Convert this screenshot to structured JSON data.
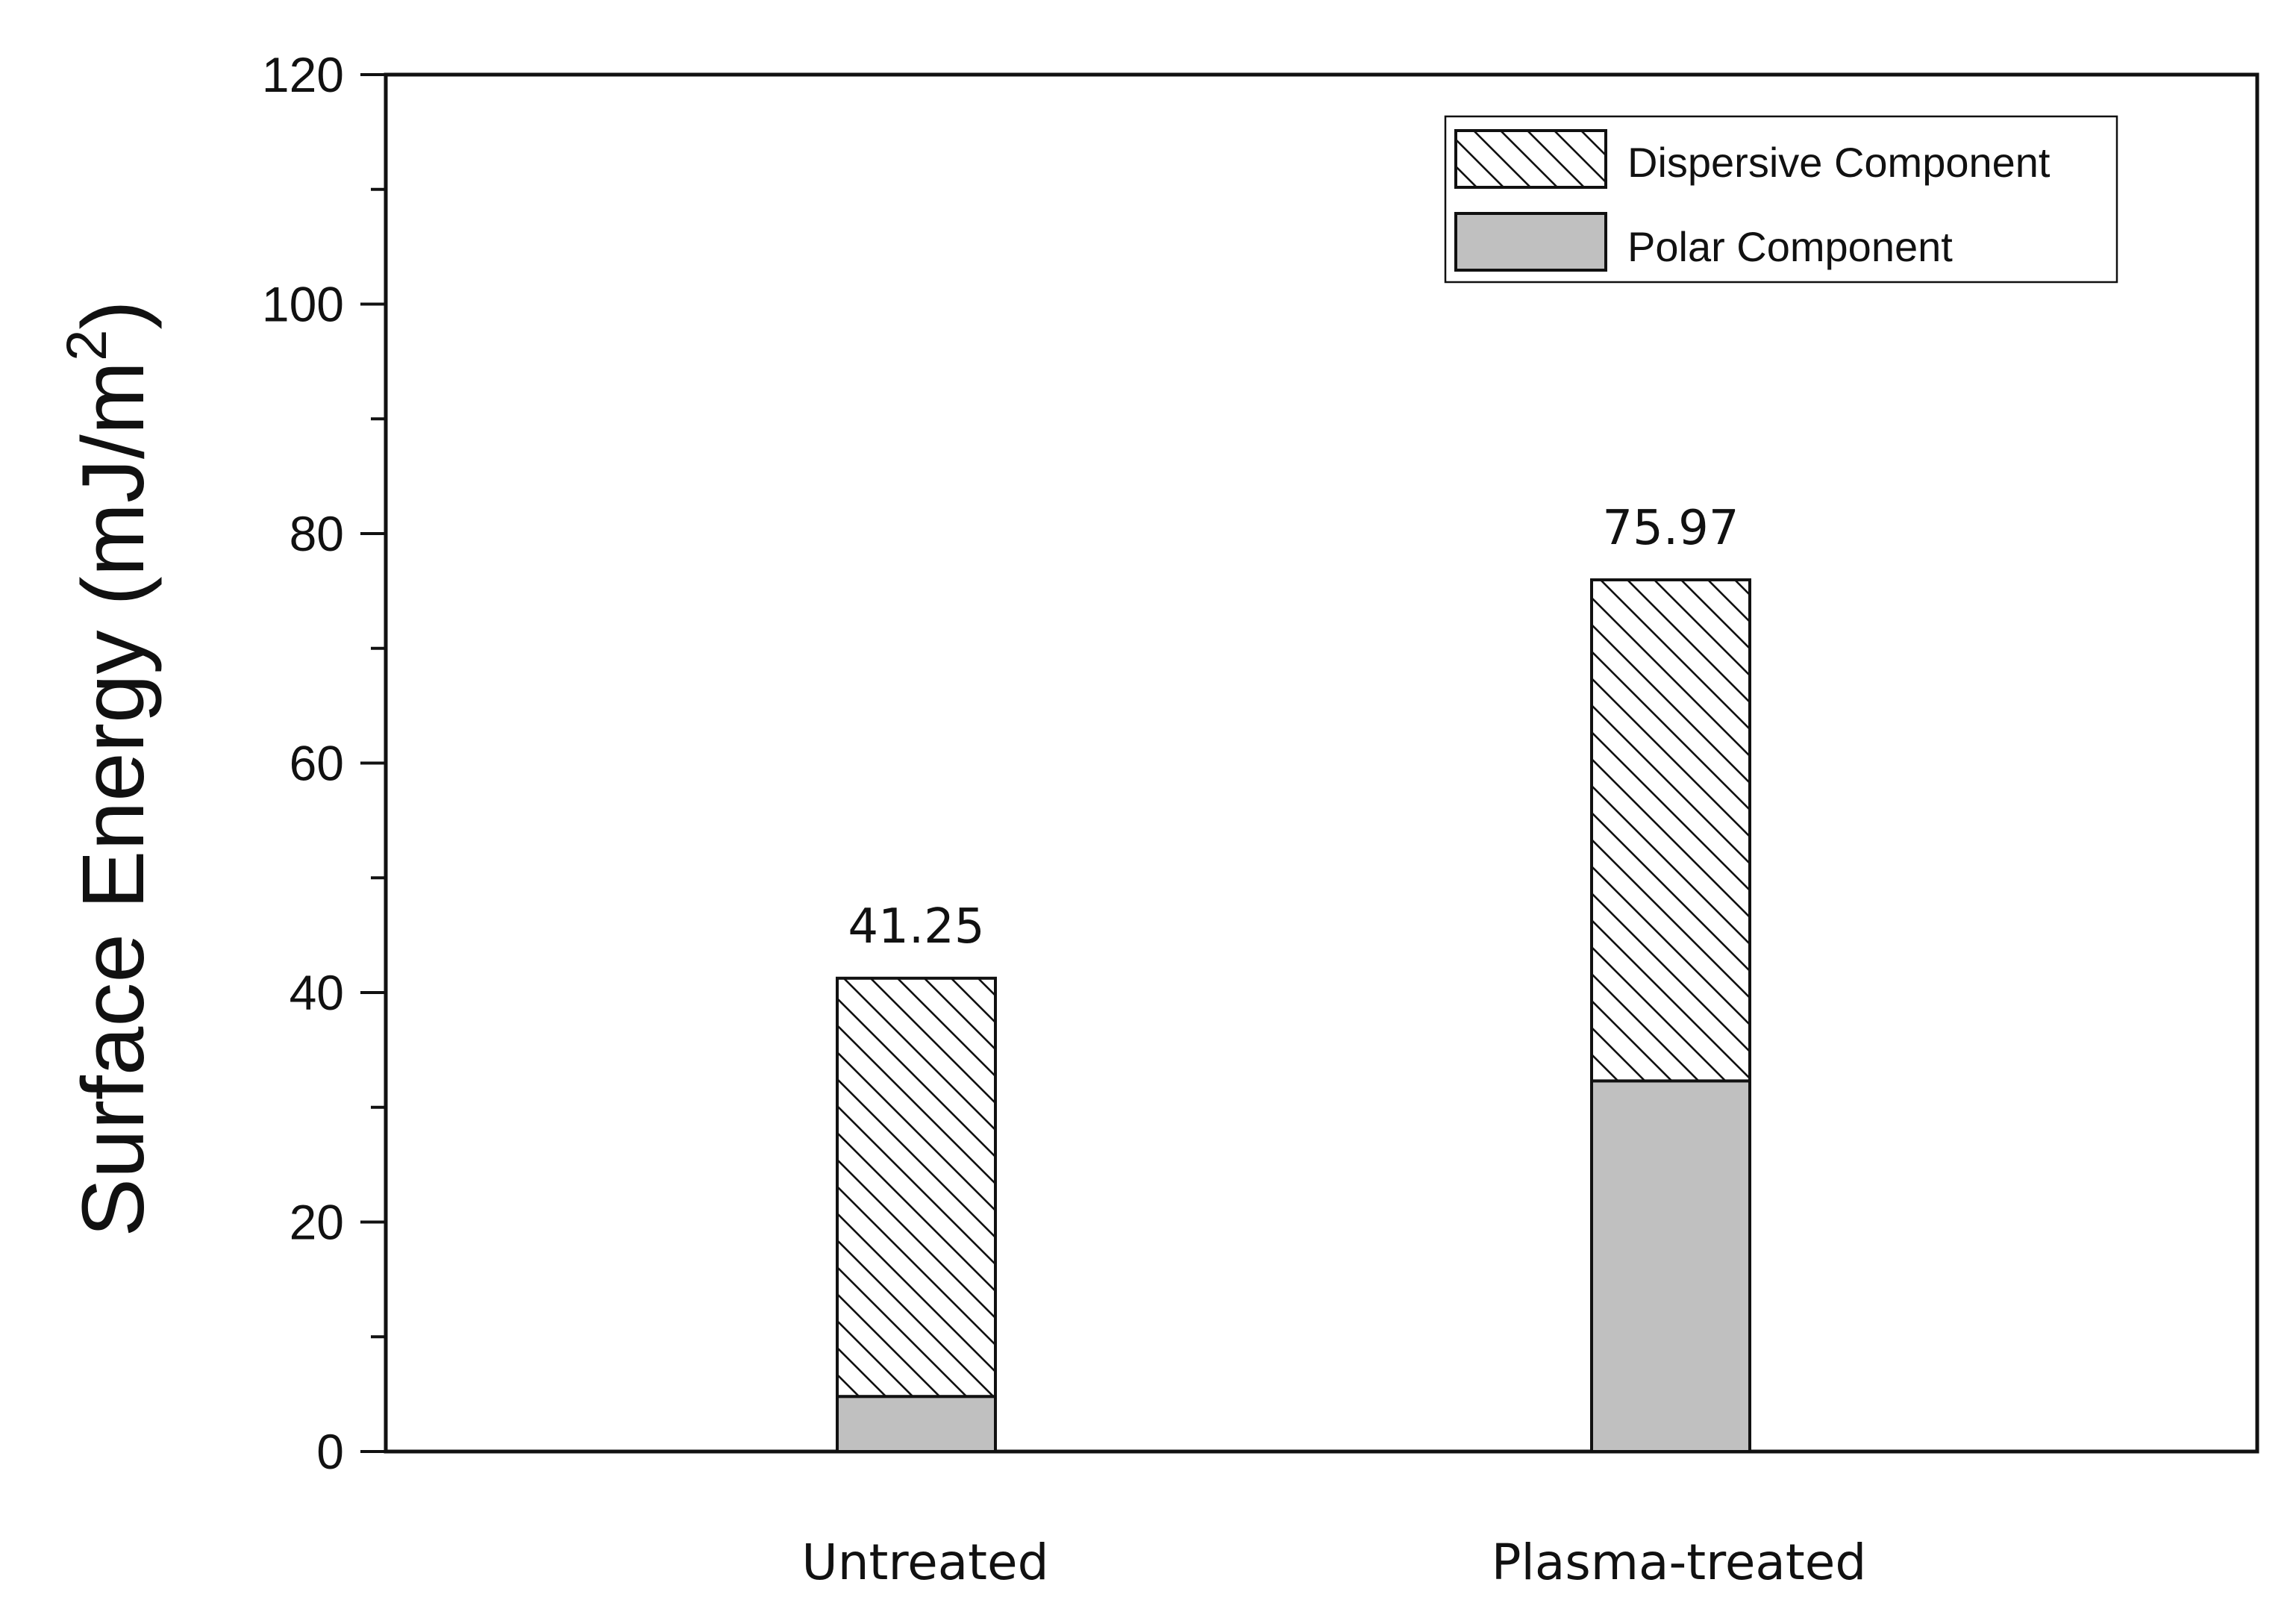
{
  "chart_data": {
    "type": "bar",
    "stacked": true,
    "categories": [
      "Untreated",
      "Plasma-treated"
    ],
    "series": [
      {
        "name": "Polar Component",
        "values": [
          4.8,
          32.3
        ],
        "fill": "#c0c0c0",
        "pattern": "solid"
      },
      {
        "name": "Dispersive Component",
        "values": [
          36.45,
          43.67
        ],
        "fill": "#ffffff",
        "pattern": "diagonal-hatch"
      }
    ],
    "totals": [
      "41.25",
      "75.97"
    ],
    "ylabel_main": "Surface Energy (mJ/m",
    "ylabel_sup": "2",
    "ylabel_close": ")",
    "xlabel": "",
    "ylim": [
      0,
      120
    ],
    "yticks": [
      "0",
      "20",
      "40",
      "60",
      "80",
      "100",
      "120"
    ],
    "legend_position": "top-right",
    "legend_order": [
      "Dispersive Component",
      "Polar Component"
    ],
    "grid": false
  }
}
